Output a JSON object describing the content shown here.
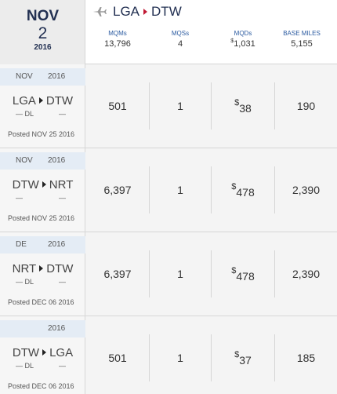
{
  "header": {
    "month": "NOV",
    "day": "2",
    "year": "2016",
    "origin": "LGA",
    "destination": "DTW",
    "icon": "plane-icon",
    "totals": {
      "mqm_label": "MQMs",
      "mqm_value": "13,796",
      "mqs_label": "MQSs",
      "mqs_value": "4",
      "mqd_label": "MQDs",
      "mqd_symbol": "$",
      "mqd_value": "1,031",
      "miles_label": "BASE MILES",
      "miles_value": "5,155"
    }
  },
  "rows": [
    {
      "date_a": "NOV",
      "date_b": "2016",
      "origin": "LGA",
      "destination": "DTW",
      "sub_a": "— DL",
      "sub_b": "—",
      "posted": "Posted NOV 25 2016",
      "mqm": "501",
      "mqs": "1",
      "mqd_symbol": "$",
      "mqd": "38",
      "miles": "190"
    },
    {
      "date_a": "NOV",
      "date_b": "2016",
      "origin": "DTW",
      "destination": "NRT",
      "sub_a": "—",
      "sub_b": "—",
      "posted": "Posted NOV 25 2016",
      "mqm": "6,397",
      "mqs": "1",
      "mqd_symbol": "$",
      "mqd": "478",
      "miles": "2,390"
    },
    {
      "date_a": "DE",
      "date_b": "2016",
      "origin": "NRT",
      "destination": "DTW",
      "sub_a": "— DL",
      "sub_b": "—",
      "posted": "Posted DEC 06 2016",
      "mqm": "6,397",
      "mqs": "1",
      "mqd_symbol": "$",
      "mqd": "478",
      "miles": "2,390"
    },
    {
      "date_a": "",
      "date_b": "2016",
      "origin": "DTW",
      "destination": "LGA",
      "sub_a": "— DL",
      "sub_b": "—",
      "posted": "Posted DEC 06 2016",
      "mqm": "501",
      "mqs": "1",
      "mqd_symbol": "$",
      "mqd": "37",
      "miles": "185"
    }
  ]
}
